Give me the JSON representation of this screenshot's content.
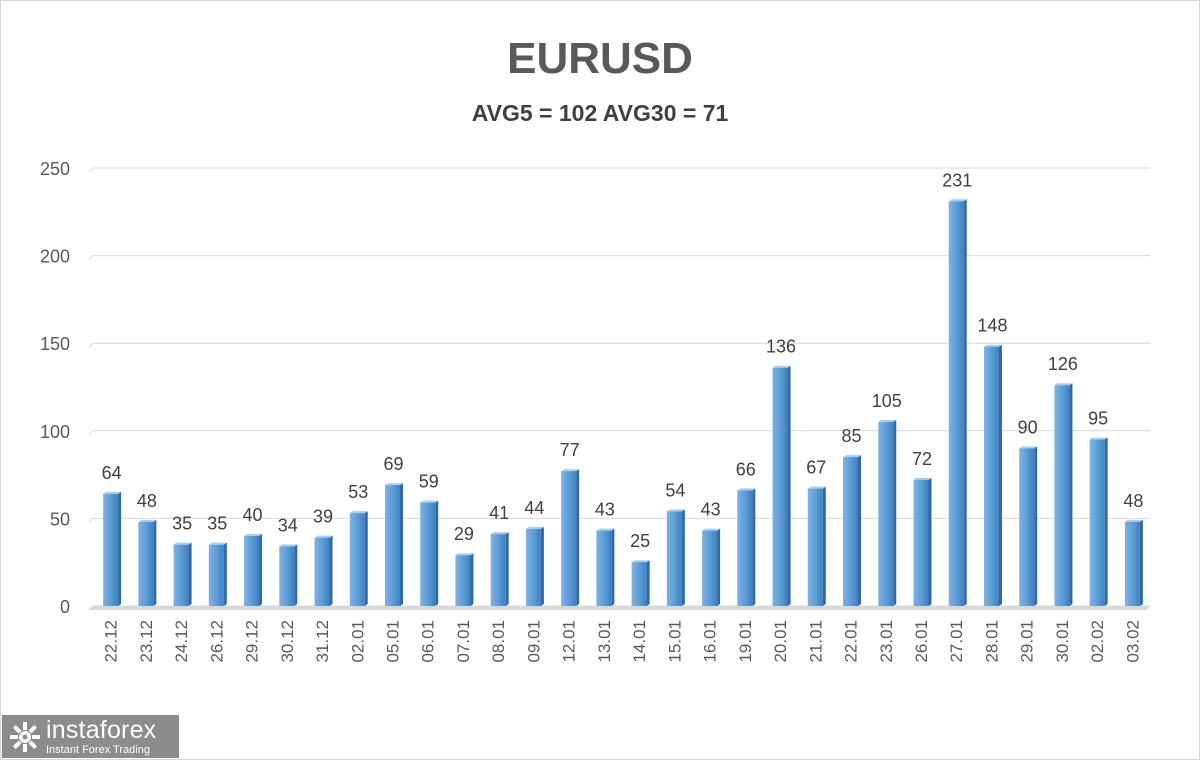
{
  "chart_data": {
    "type": "bar",
    "title": "EURUSD",
    "subtitle": "AVG5 = 102 AVG30 = 71",
    "categories": [
      "22.12",
      "23.12",
      "24.12",
      "26.12",
      "29.12",
      "30.12",
      "31.12",
      "02.01",
      "05.01",
      "06.01",
      "07.01",
      "08.01",
      "09.01",
      "12.01",
      "13.01",
      "14.01",
      "15.01",
      "16.01",
      "19.01",
      "20.01",
      "21.01",
      "22.01",
      "23.01",
      "26.01",
      "27.01",
      "28.01",
      "29.01",
      "30.01",
      "02.02",
      "03.02"
    ],
    "values": [
      64,
      48,
      35,
      35,
      40,
      34,
      39,
      53,
      69,
      59,
      29,
      41,
      44,
      77,
      43,
      25,
      54,
      43,
      66,
      136,
      67,
      85,
      105,
      72,
      231,
      148,
      90,
      126,
      95,
      48
    ],
    "ylim": [
      0,
      250
    ],
    "yticks": [
      0,
      50,
      100,
      150,
      200,
      250
    ],
    "grid": true,
    "bar_color": "#5b9bd5",
    "xlabel": "",
    "ylabel": ""
  },
  "watermark": {
    "name": "instaforex",
    "tagline": "Instant Forex Trading",
    "icon": "instaforex-logo-icon"
  }
}
